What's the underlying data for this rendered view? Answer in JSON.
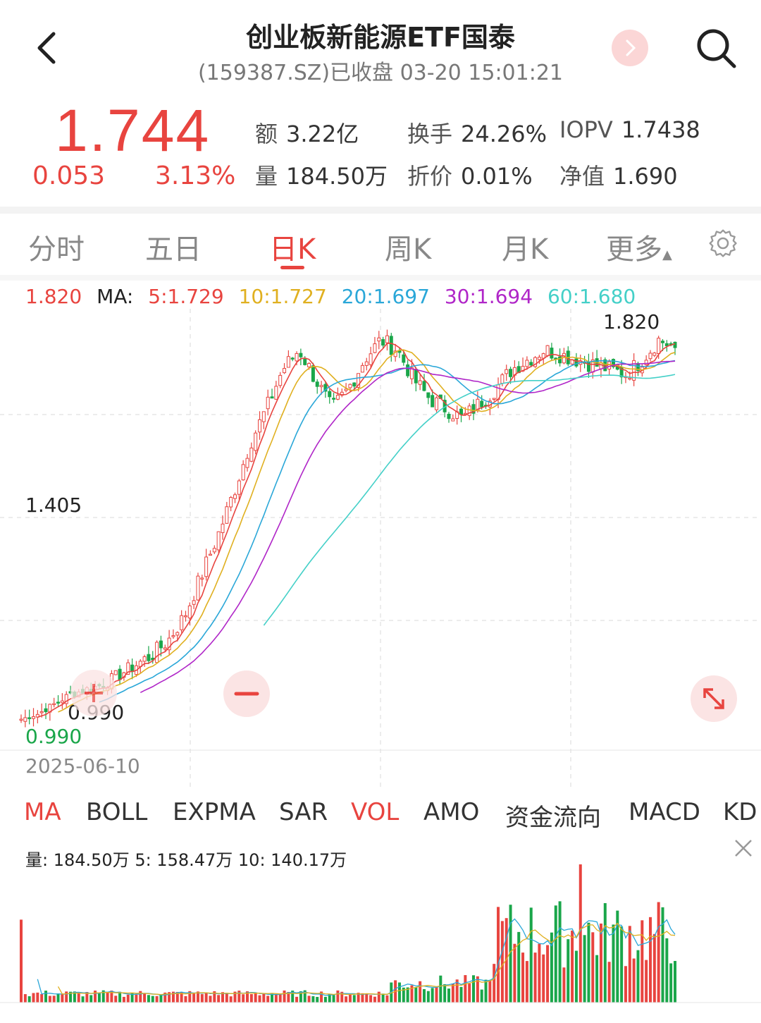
{
  "header": {
    "title": "创业板新能源ETF国泰",
    "subtitle": "(159387.SZ)已收盘 03-20 15:01:21"
  },
  "quote": {
    "price": "1.744",
    "change": "0.053",
    "change_pct": "3.13%",
    "stats": [
      {
        "label": "额",
        "value": "3.22亿"
      },
      {
        "label": "换手",
        "value": "24.26%"
      },
      {
        "label": "IOPV",
        "value": "1.7438"
      },
      {
        "label": "量",
        "value": "184.50万"
      },
      {
        "label": "折价",
        "value": "0.01%"
      },
      {
        "label": "净值",
        "value": "1.690"
      }
    ]
  },
  "period_tabs": [
    "分时",
    "五日",
    "日K",
    "周K",
    "月K",
    "更多"
  ],
  "active_period": "日K",
  "ma_legend": {
    "high": "1.820",
    "label": "MA:",
    "items": [
      {
        "text": "5:1.729",
        "color": "#e8443f"
      },
      {
        "text": "10:1.727",
        "color": "#e0b020"
      },
      {
        "text": "20:1.697",
        "color": "#2aa7d8"
      },
      {
        "text": "30:1.694",
        "color": "#b026c8"
      },
      {
        "text": "60:1.680",
        "color": "#44d0c8"
      }
    ]
  },
  "chart_labels": {
    "high_marker": "1.820",
    "mid_axis": "1.405",
    "low_marker": "0.990",
    "low_axis": "0.990",
    "start_date": "2025-06-10"
  },
  "indicator_tabs": [
    "MA",
    "BOLL",
    "EXPMA",
    "SAR",
    "VOL",
    "AMO",
    "资金流向",
    "MACD",
    "KD"
  ],
  "active_indicators": [
    "MA",
    "VOL"
  ],
  "volume_legend": "量: 184.50万  5: 158.47万  10: 140.17万",
  "colors": {
    "up": "#e8443f",
    "down": "#1aa64a",
    "ma5": "#e8443f",
    "ma10": "#e0b020",
    "ma20": "#2aa7d8",
    "ma30": "#b026c8",
    "ma60": "#44d0c8"
  },
  "chart_data": {
    "type": "candlestick",
    "ylim": [
      0.99,
      1.82
    ],
    "description_points": {
      "close_approx": [
        0.99,
        1.0,
        1.02,
        1.04,
        1.05,
        1.06,
        1.08,
        1.1,
        1.12,
        1.15,
        1.2,
        1.28,
        1.36,
        1.45,
        1.55,
        1.62,
        1.7,
        1.74,
        1.68,
        1.62,
        1.66,
        1.72,
        1.76,
        1.74,
        1.68,
        1.64,
        1.62,
        1.6,
        1.63,
        1.66,
        1.7,
        1.72,
        1.74,
        1.73,
        1.72,
        1.71,
        1.7,
        1.69,
        1.72,
        1.76,
        1.744
      ]
    }
  }
}
